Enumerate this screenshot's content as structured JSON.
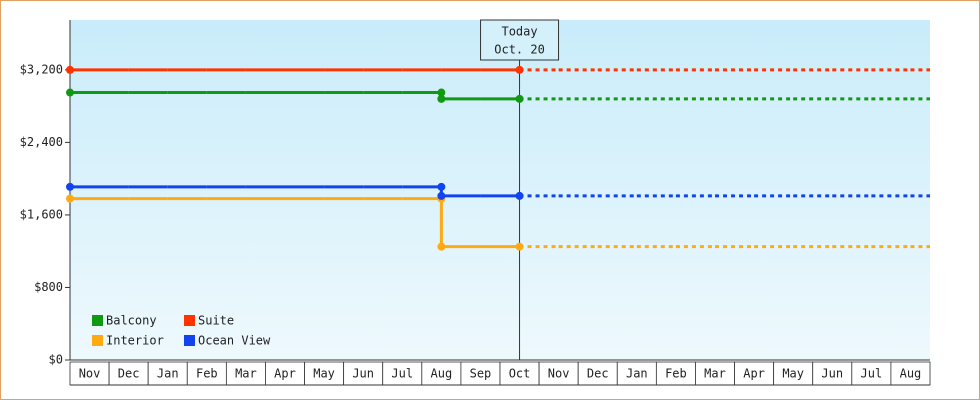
{
  "chart_data": {
    "type": "step",
    "categories": [
      "Nov",
      "Dec",
      "Jan",
      "Feb",
      "Mar",
      "Apr",
      "May",
      "Jun",
      "Jul",
      "Aug",
      "Sep",
      "Oct",
      "Nov",
      "Dec",
      "Jan",
      "Feb",
      "Mar",
      "Apr",
      "May",
      "Jun",
      "Jul",
      "Aug"
    ],
    "series": [
      {
        "name": "Balcony",
        "color": "#119911",
        "values": [
          2950,
          2950,
          2950,
          2950,
          2950,
          2950,
          2950,
          2950,
          2950,
          2880,
          2880,
          2880,
          2880,
          2880,
          2880,
          2880,
          2880,
          2880,
          2880,
          2880,
          2880,
          2880
        ]
      },
      {
        "name": "Suite",
        "color": "#ff3300",
        "values": [
          3200,
          3200,
          3200,
          3200,
          3200,
          3200,
          3200,
          3200,
          3200,
          3200,
          3200,
          3200,
          3200,
          3200,
          3200,
          3200,
          3200,
          3200,
          3200,
          3200,
          3200,
          3200
        ]
      },
      {
        "name": "Interior",
        "color": "#ffaa11",
        "values": [
          1780,
          1780,
          1780,
          1780,
          1780,
          1780,
          1780,
          1780,
          1780,
          1250,
          1250,
          1250,
          1250,
          1250,
          1250,
          1250,
          1250,
          1250,
          1250,
          1250,
          1250,
          1250
        ]
      },
      {
        "name": "Ocean View",
        "color": "#1144ee",
        "values": [
          1910,
          1910,
          1910,
          1910,
          1910,
          1910,
          1910,
          1910,
          1910,
          1810,
          1810,
          1810,
          1810,
          1810,
          1810,
          1810,
          1810,
          1810,
          1810,
          1810,
          1810,
          1810
        ]
      }
    ],
    "annotation": {
      "lines": [
        "Today",
        "Oct. 20"
      ],
      "category": "Oct"
    },
    "ylim": [
      0,
      3750
    ],
    "yticks": [
      {
        "value": 0,
        "label": "$0"
      },
      {
        "value": 800,
        "label": "$800"
      },
      {
        "value": 1600,
        "label": "$1,600"
      },
      {
        "value": 2400,
        "label": "$2,400"
      },
      {
        "value": 3200,
        "label": "$3,200"
      }
    ],
    "legend": "bottom-left",
    "grid": false
  }
}
